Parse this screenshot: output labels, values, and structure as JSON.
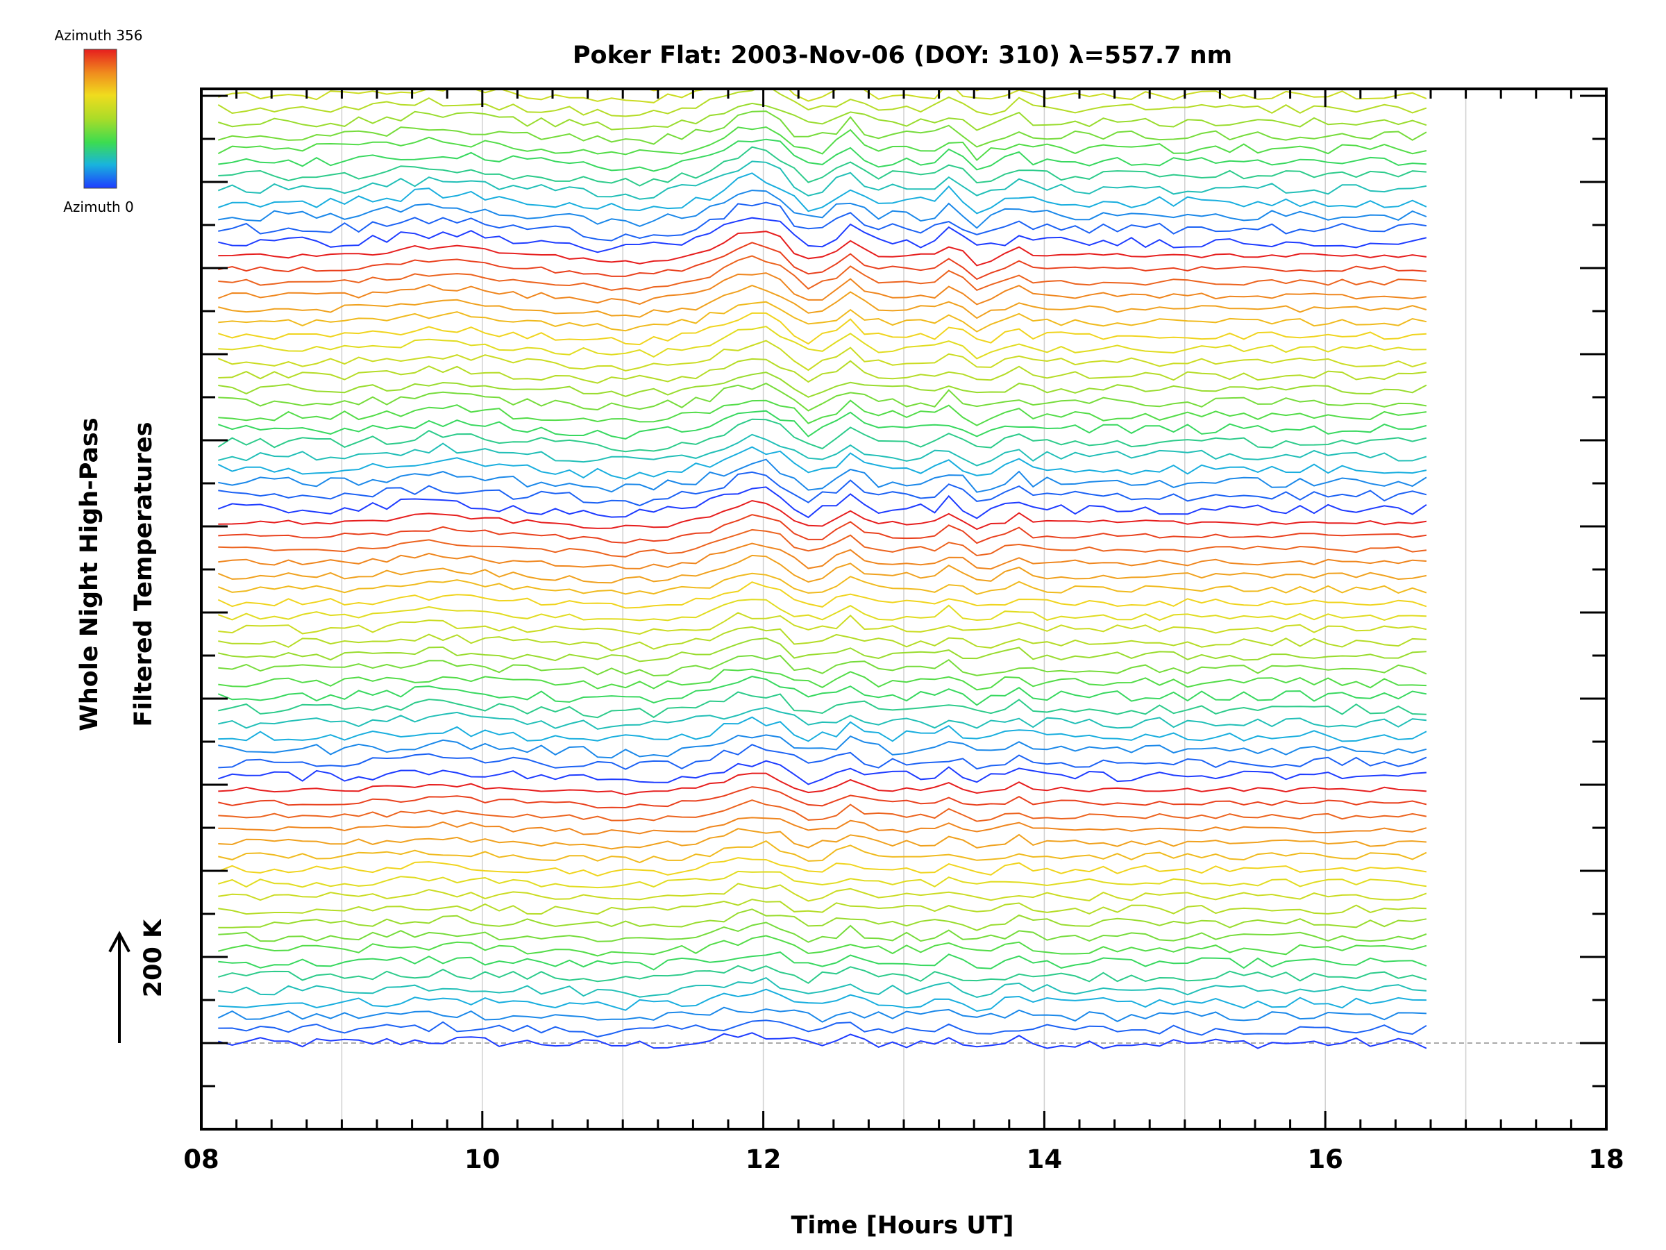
{
  "chart_data": {
    "type": "line",
    "title": "Poker Flat: 2003-Nov-06 (DOY: 310) λ=557.7 nm",
    "xlabel": "Time [Hours UT]",
    "ylabel_line1": "Whole Night High-Pass",
    "ylabel_line2": "Filtered Temperatures",
    "scale_bar_label": "200 K",
    "scale_bar_value_K": 200,
    "xlim": [
      8,
      18
    ],
    "x_ticks": [
      "08",
      "10",
      "12",
      "14",
      "16",
      "18"
    ],
    "x_major_tick_values": [
      8,
      10,
      12,
      14,
      16,
      18
    ],
    "x_minor_step": 0.25,
    "x_grid_values": [
      9,
      10,
      11,
      12,
      13,
      14,
      15,
      16,
      17
    ],
    "data_time_range": [
      8.12,
      16.74
    ],
    "n_traces": 80,
    "trace_offset_K": 31,
    "baseline_dashed": true,
    "grid": true,
    "legend": "colorbar top-left",
    "colorbar": {
      "top_label": "Azimuth 356",
      "bottom_label": "Azimuth 0",
      "colormap": [
        "#1e3cff",
        "#19b4dc",
        "#3cdc50",
        "#aadc28",
        "#f0dc1e",
        "#f08c1e",
        "#e61e1e"
      ]
    },
    "colors": {
      "axes": "#000000",
      "grid": "#d0d0d0",
      "baseline": "#aaaaaa"
    }
  }
}
